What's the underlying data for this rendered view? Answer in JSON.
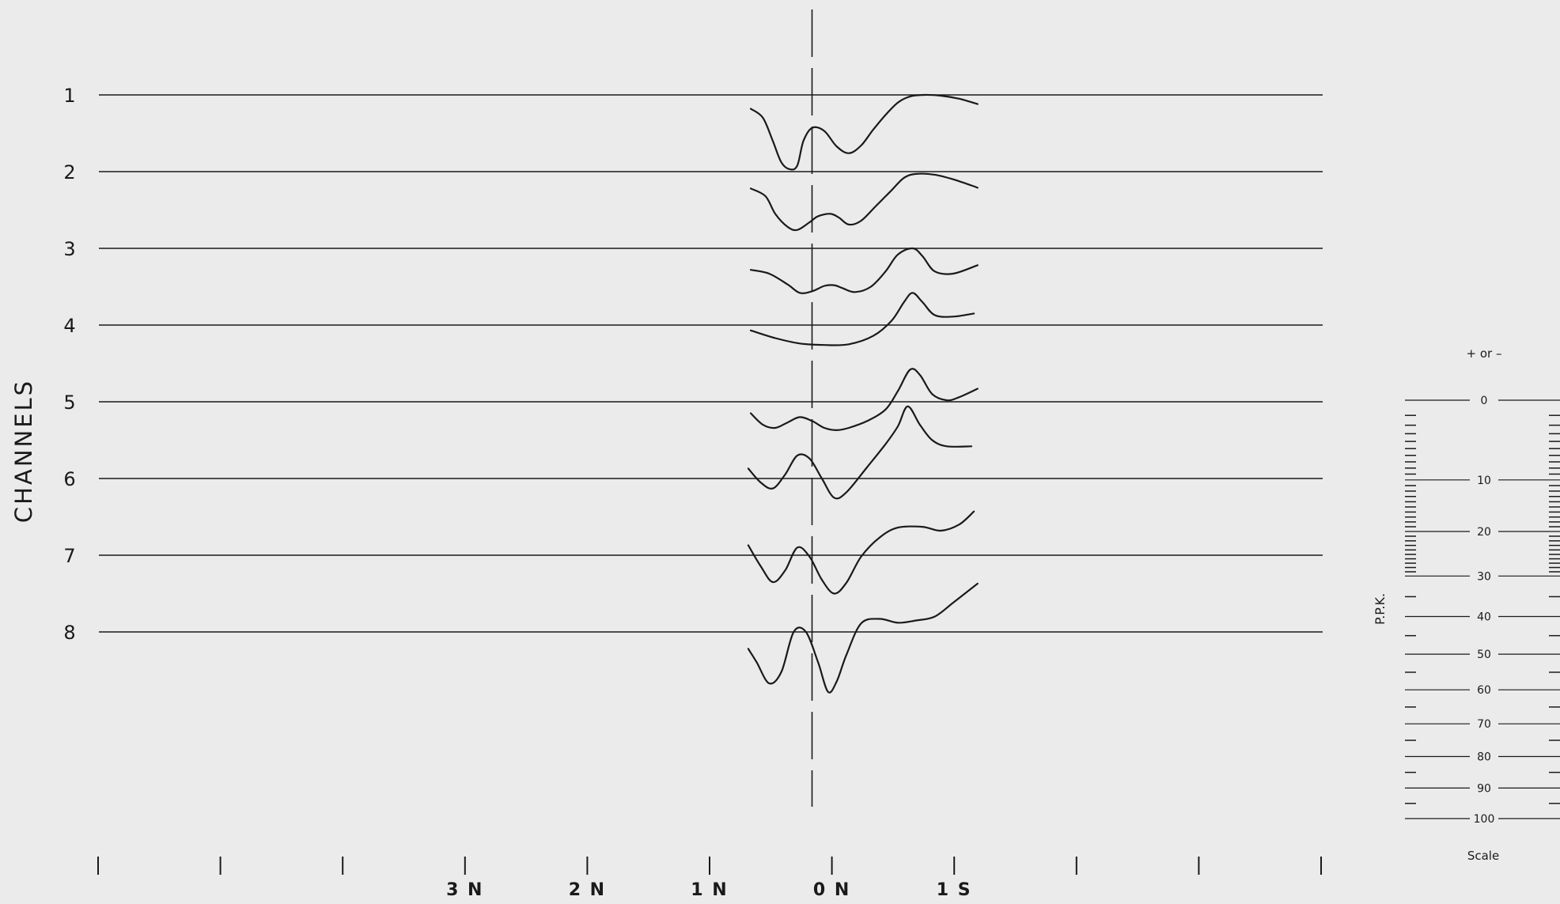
{
  "chart_data": {
    "type": "line",
    "yaxis_label": "CHANNELS",
    "channels": [
      "1",
      "2",
      "3",
      "4",
      "5",
      "6",
      "7",
      "8"
    ],
    "x_ticks": [
      "",
      "",
      "",
      "3 N",
      "2 N",
      "1 N",
      "0 N",
      "1 S",
      "",
      "",
      ""
    ],
    "series": [
      {
        "channel": "1",
        "points": [
          [
            -0.6,
            -0.18
          ],
          [
            -0.5,
            -0.3
          ],
          [
            -0.42,
            -0.6
          ],
          [
            -0.35,
            -0.88
          ],
          [
            -0.28,
            -0.97
          ],
          [
            -0.22,
            -0.92
          ],
          [
            -0.17,
            -0.6
          ],
          [
            -0.1,
            -0.43
          ],
          [
            0.0,
            -0.47
          ],
          [
            0.1,
            -0.67
          ],
          [
            0.2,
            -0.76
          ],
          [
            0.3,
            -0.66
          ],
          [
            0.4,
            -0.45
          ],
          [
            0.5,
            -0.26
          ],
          [
            0.6,
            -0.1
          ],
          [
            0.7,
            -0.02
          ],
          [
            0.82,
            0.0
          ],
          [
            0.95,
            -0.01
          ],
          [
            1.1,
            -0.05
          ],
          [
            1.25,
            -0.12
          ]
        ]
      },
      {
        "channel": "2",
        "points": [
          [
            -0.6,
            -0.22
          ],
          [
            -0.48,
            -0.32
          ],
          [
            -0.4,
            -0.55
          ],
          [
            -0.3,
            -0.72
          ],
          [
            -0.22,
            -0.76
          ],
          [
            -0.12,
            -0.66
          ],
          [
            -0.05,
            -0.58
          ],
          [
            0.05,
            -0.55
          ],
          [
            0.12,
            -0.6
          ],
          [
            0.2,
            -0.69
          ],
          [
            0.3,
            -0.64
          ],
          [
            0.42,
            -0.45
          ],
          [
            0.55,
            -0.24
          ],
          [
            0.65,
            -0.08
          ],
          [
            0.75,
            -0.03
          ],
          [
            0.9,
            -0.04
          ],
          [
            1.05,
            -0.1
          ],
          [
            1.2,
            -0.18
          ],
          [
            1.25,
            -0.21
          ]
        ]
      },
      {
        "channel": "3",
        "points": [
          [
            -0.6,
            -0.28
          ],
          [
            -0.45,
            -0.33
          ],
          [
            -0.3,
            -0.47
          ],
          [
            -0.2,
            -0.58
          ],
          [
            -0.1,
            -0.56
          ],
          [
            0.0,
            -0.49
          ],
          [
            0.08,
            -0.48
          ],
          [
            0.15,
            -0.52
          ],
          [
            0.25,
            -0.57
          ],
          [
            0.38,
            -0.5
          ],
          [
            0.5,
            -0.3
          ],
          [
            0.6,
            -0.08
          ],
          [
            0.72,
            0.0
          ],
          [
            0.8,
            -0.1
          ],
          [
            0.9,
            -0.3
          ],
          [
            1.05,
            -0.33
          ],
          [
            1.25,
            -0.22
          ]
        ]
      },
      {
        "channel": "4",
        "points": [
          [
            -0.6,
            -0.07
          ],
          [
            -0.4,
            -0.17
          ],
          [
            -0.2,
            -0.24
          ],
          [
            0.0,
            -0.26
          ],
          [
            0.2,
            -0.25
          ],
          [
            0.4,
            -0.14
          ],
          [
            0.55,
            0.06
          ],
          [
            0.65,
            0.3
          ],
          [
            0.72,
            0.42
          ],
          [
            0.8,
            0.3
          ],
          [
            0.9,
            0.13
          ],
          [
            1.05,
            0.11
          ],
          [
            1.22,
            0.15
          ]
        ]
      },
      {
        "channel": "5",
        "points": [
          [
            -0.6,
            -0.15
          ],
          [
            -0.5,
            -0.3
          ],
          [
            -0.4,
            -0.34
          ],
          [
            -0.3,
            -0.27
          ],
          [
            -0.2,
            -0.2
          ],
          [
            -0.1,
            -0.25
          ],
          [
            0.0,
            -0.34
          ],
          [
            0.1,
            -0.37
          ],
          [
            0.2,
            -0.34
          ],
          [
            0.35,
            -0.25
          ],
          [
            0.5,
            -0.1
          ],
          [
            0.6,
            0.14
          ],
          [
            0.7,
            0.42
          ],
          [
            0.78,
            0.35
          ],
          [
            0.88,
            0.1
          ],
          [
            1.0,
            0.02
          ],
          [
            1.1,
            0.06
          ],
          [
            1.25,
            0.17
          ]
        ]
      },
      {
        "channel": "6",
        "points": [
          [
            -0.62,
            0.13
          ],
          [
            -0.52,
            -0.05
          ],
          [
            -0.42,
            -0.13
          ],
          [
            -0.32,
            0.05
          ],
          [
            -0.22,
            0.3
          ],
          [
            -0.12,
            0.26
          ],
          [
            -0.02,
            0.0
          ],
          [
            0.08,
            -0.25
          ],
          [
            0.18,
            -0.18
          ],
          [
            0.35,
            0.15
          ],
          [
            0.5,
            0.45
          ],
          [
            0.6,
            0.68
          ],
          [
            0.68,
            0.94
          ],
          [
            0.78,
            0.7
          ],
          [
            0.88,
            0.5
          ],
          [
            1.0,
            0.42
          ],
          [
            1.2,
            0.42
          ]
        ]
      },
      {
        "channel": "7",
        "points": [
          [
            -0.62,
            0.13
          ],
          [
            -0.52,
            -0.14
          ],
          [
            -0.42,
            -0.35
          ],
          [
            -0.32,
            -0.2
          ],
          [
            -0.22,
            0.1
          ],
          [
            -0.12,
            -0.02
          ],
          [
            -0.02,
            -0.32
          ],
          [
            0.08,
            -0.5
          ],
          [
            0.18,
            -0.36
          ],
          [
            0.3,
            -0.02
          ],
          [
            0.45,
            0.23
          ],
          [
            0.6,
            0.36
          ],
          [
            0.8,
            0.37
          ],
          [
            0.95,
            0.32
          ],
          [
            1.1,
            0.4
          ],
          [
            1.22,
            0.57
          ]
        ]
      },
      {
        "channel": "8",
        "points": [
          [
            -0.62,
            -0.22
          ],
          [
            -0.55,
            -0.4
          ],
          [
            -0.45,
            -0.67
          ],
          [
            -0.35,
            -0.52
          ],
          [
            -0.25,
            0.0
          ],
          [
            -0.15,
            0.0
          ],
          [
            -0.05,
            -0.4
          ],
          [
            0.03,
            -0.78
          ],
          [
            0.1,
            -0.65
          ],
          [
            0.18,
            -0.3
          ],
          [
            0.3,
            0.11
          ],
          [
            0.45,
            0.17
          ],
          [
            0.6,
            0.12
          ],
          [
            0.75,
            0.15
          ],
          [
            0.9,
            0.2
          ],
          [
            1.05,
            0.38
          ],
          [
            1.25,
            0.63
          ]
        ]
      }
    ],
    "scale": {
      "sign_label": "+ or –",
      "side_label": "P.P.K.",
      "caption": "Scale",
      "labels": [
        "0",
        "10",
        "20",
        "30",
        "40",
        "50",
        "60",
        "70",
        "80",
        "90",
        "100"
      ]
    }
  }
}
